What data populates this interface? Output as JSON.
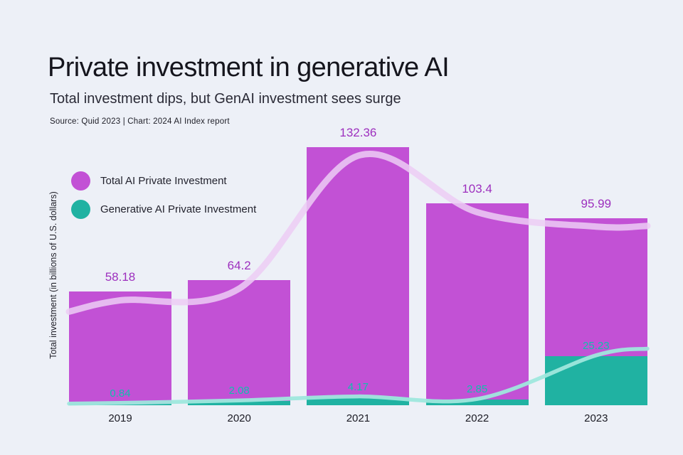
{
  "header": {
    "title": "Private investment in generative AI",
    "subtitle": "Total investment dips, but GenAI investment sees surge",
    "source": "Source: Quid 2023 | Chart: 2024 AI Index report"
  },
  "colors": {
    "background": "#edf0f7",
    "total_bar": "#c251d5",
    "generative_bar": "#20b2a2",
    "total_value_label": "#9d2fbe",
    "generative_value_label": "#0fc0ad",
    "total_trend_line": "#eccdf5",
    "generative_trend_line": "#9fe7dd"
  },
  "chart_data": {
    "type": "bar",
    "title": "Private investment in generative AI",
    "subtitle": "Total investment dips, but GenAI investment sees surge",
    "source": "Source: Quid 2023 | Chart: 2024 AI Index report",
    "categories": [
      "2019",
      "2020",
      "2021",
      "2022",
      "2023"
    ],
    "series": [
      {
        "name": "Total AI Private Investment",
        "color": "#c251d5",
        "values": [
          58.18,
          64.2,
          132.36,
          103.4,
          95.99
        ]
      },
      {
        "name": "Generative AI Private Investment",
        "color": "#20b2a2",
        "values": [
          0.84,
          2.08,
          4.17,
          2.85,
          25.23
        ]
      }
    ],
    "ylabel": "Total investment (in billions of U.S. dollars)",
    "xlabel": "",
    "ylim": [
      0,
      140
    ],
    "grid": false,
    "legend_position": "top-left",
    "annotations": "smoothed trend lines overlaid for both series"
  }
}
